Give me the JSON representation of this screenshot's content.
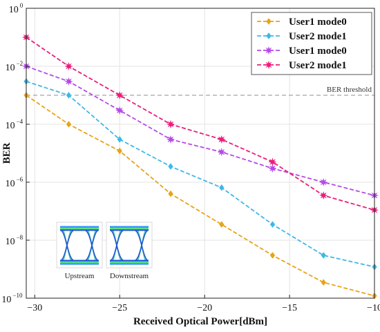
{
  "chart_data": {
    "type": "line",
    "title": "",
    "xlabel": "Received Optical Power[dBm]",
    "ylabel": "BER",
    "xlim": [
      -30.5,
      -10
    ],
    "ylim_exponent": [
      -10,
      0
    ],
    "y_scale": "log",
    "grid": true,
    "legend_position": "top-right",
    "x_ticks": [
      -30,
      -25,
      -20,
      -15,
      -10
    ],
    "x_tick_labels": [
      "−30",
      "−25",
      "−20",
      "−15",
      "−10"
    ],
    "y_tick_exponents": [
      0,
      -2,
      -4,
      -6,
      -8,
      -10
    ],
    "y_tick_base": "10",
    "y_tick_exponent_labels": [
      "0",
      "−2",
      "−4",
      "−6",
      "−8",
      "−10"
    ],
    "x": [
      -30.5,
      -28,
      -25,
      -22,
      -19,
      -16,
      -13,
      -10
    ],
    "series": [
      {
        "name": "User1 mode0",
        "color": "#E8A317",
        "marker": "diamond",
        "values": [
          0.001,
          0.0001,
          1.2e-05,
          4e-07,
          3.5e-08,
          3e-09,
          3.5e-10,
          1.2e-10
        ]
      },
      {
        "name": "User2 mode1",
        "color": "#3EB8E6",
        "marker": "diamond",
        "values": [
          0.003,
          0.001,
          3e-05,
          3.5e-06,
          6.5e-07,
          3.5e-08,
          3e-09,
          1.2e-09
        ]
      },
      {
        "name": "User1 mode0",
        "color": "#B549E8",
        "marker": "star",
        "values": [
          0.01,
          0.003,
          0.0003,
          3e-05,
          1.1e-05,
          3e-06,
          1e-06,
          3.5e-07
        ]
      },
      {
        "name": "User2 mode1",
        "color": "#EC1C7A",
        "marker": "star",
        "values": [
          0.1,
          0.01,
          0.001,
          0.0001,
          3e-05,
          5e-06,
          3.5e-07,
          1.1e-07
        ]
      }
    ],
    "threshold": {
      "value": 0.001,
      "label": "BER threshold",
      "color": "#8c8c8c"
    },
    "eye_diagrams": [
      {
        "label": "Upstream"
      },
      {
        "label": "Downstream"
      }
    ]
  }
}
